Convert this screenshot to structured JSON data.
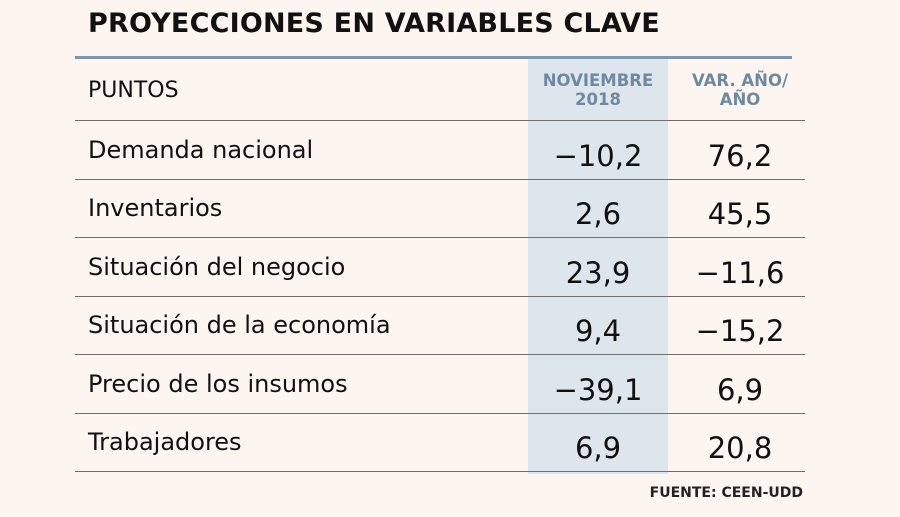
{
  "title": "PROYECCIONES EN VARIABLES CLAVE",
  "columns": {
    "label": "PUNTOS",
    "col1_line1": "NOVIEMBRE",
    "col1_line2": "2018",
    "col2_line1": "VAR. AÑO/",
    "col2_line2": "AÑO"
  },
  "rows": [
    {
      "label": "Demanda nacional",
      "nov_2018": "−10,2",
      "var_yoy": "76,2"
    },
    {
      "label": "Inventarios",
      "nov_2018": "2,6",
      "var_yoy": "45,5"
    },
    {
      "label": "Situación del negocio",
      "nov_2018": "23,9",
      "var_yoy": "−11,6"
    },
    {
      "label": "Situación de la economía",
      "nov_2018": "9,4",
      "var_yoy": "−15,2"
    },
    {
      "label": "Precio de los insumos",
      "nov_2018": "−39,1",
      "var_yoy": "6,9"
    },
    {
      "label": "Trabajadores",
      "nov_2018": "6,9",
      "var_yoy": "20,8"
    }
  ],
  "source": "FUENTE: CEEN-UDD",
  "colors": {
    "background": "#fdf5ef",
    "highlight_column": "#dde6ec",
    "accent_header": "#6f8aa0",
    "top_rule": "#7b98b0"
  }
}
